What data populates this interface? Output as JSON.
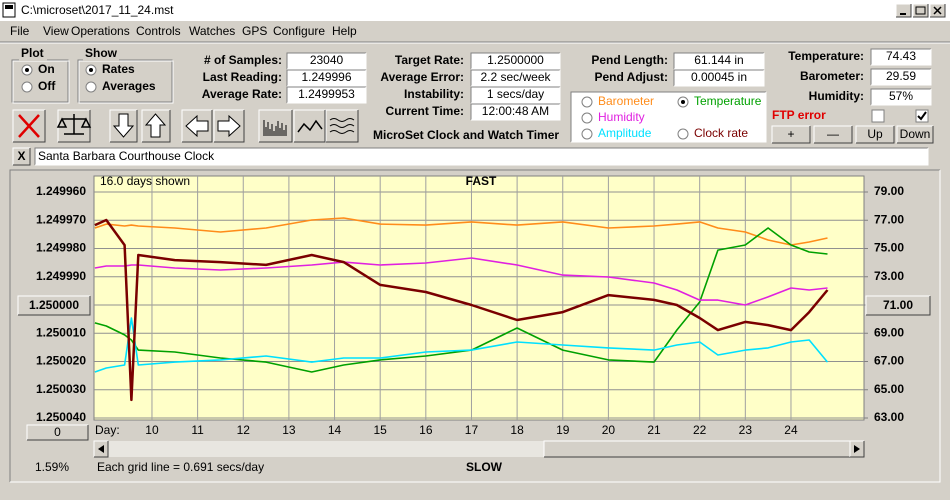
{
  "window": {
    "title": "C:\\microset\\2017_11_24.mst"
  },
  "menu": [
    "File",
    "View",
    "Operations",
    "Controls",
    "Watches",
    "GPS",
    "Configure",
    "Help"
  ],
  "plot_group": {
    "title": "Plot",
    "options": [
      "On",
      "Off"
    ]
  },
  "show_group": {
    "title": "Show",
    "options": [
      "Rates",
      "Averages"
    ]
  },
  "stats": [
    {
      "label": "# of Samples:",
      "value": "23040"
    },
    {
      "label": "Last Reading:",
      "value": "1.249996"
    },
    {
      "label": "Average Rate:",
      "value": "1.2499953"
    }
  ],
  "timing": [
    {
      "label": "Target Rate:",
      "value": "1.2500000"
    },
    {
      "label": "Average Error:",
      "value": "2.2 sec/week"
    },
    {
      "label": "Instability:",
      "value": "1 secs/day"
    },
    {
      "label": "Current Time:",
      "value": "12:00:48 AM"
    }
  ],
  "pendulum": [
    {
      "label": "Pend Length:",
      "value": "61.144 in"
    },
    {
      "label": "Pend Adjust:",
      "value": "0.00045 in"
    }
  ],
  "environment": [
    {
      "label": "Temperature:",
      "value": "74.43"
    },
    {
      "label": "Barometer:",
      "value": "29.59"
    },
    {
      "label": "Humidity:",
      "value": "57%"
    }
  ],
  "app_label": "MicroSet Clock and Watch Timer",
  "ftp_status": "FTP error",
  "small_buttons": [
    "+",
    "—",
    "Up",
    "Down"
  ],
  "close_watch_button": "X",
  "watch_name": "Santa Barbara Courthouse Clock",
  "chart_data": {
    "type": "line",
    "days_shown": "16.0 days shown",
    "top_label": "FAST",
    "bottom_label": "SLOW",
    "x_label": "Day:",
    "grid_note": "Each grid line = 0.691 secs/day",
    "percent": "1.59%",
    "left_button": "1.250000",
    "right_button": "71.00",
    "zero_button": "0",
    "xlim": [
      8.73,
      25.6
    ],
    "xticks": [
      10,
      11,
      12,
      13,
      14,
      15,
      16,
      17,
      18,
      19,
      20,
      21,
      22,
      23,
      24
    ],
    "ylim": [
      1.25004,
      1.24996
    ],
    "yticks": [
      {
        "value": 1.24996,
        "label": "1.249960"
      },
      {
        "value": 1.24997,
        "label": "1.249970"
      },
      {
        "value": 1.24998,
        "label": "1.249980"
      },
      {
        "value": 1.24999,
        "label": "1.249990"
      },
      {
        "value": 1.25,
        "label": "1.250000"
      },
      {
        "value": 1.25001,
        "label": "1.250010"
      },
      {
        "value": 1.25002,
        "label": "1.250020"
      },
      {
        "value": 1.25003,
        "label": "1.250030"
      },
      {
        "value": 1.25004,
        "label": "1.250040"
      }
    ],
    "y2lim": [
      63,
      79
    ],
    "y2ticks": [
      {
        "value": 79,
        "label": "79.00"
      },
      {
        "value": 77,
        "label": "77.00"
      },
      {
        "value": 75,
        "label": "75.00"
      },
      {
        "value": 73,
        "label": "73.00"
      },
      {
        "value": 71,
        "label": "71.00"
      },
      {
        "value": 69,
        "label": "69.00"
      },
      {
        "value": 67,
        "label": "67.00"
      },
      {
        "value": 65,
        "label": "65.00"
      },
      {
        "value": 63,
        "label": "63.00"
      }
    ],
    "grid": true,
    "x": [
      8.75,
      9.0,
      9.4,
      9.55,
      9.7,
      10.5,
      11.5,
      12.5,
      13.5,
      14.2,
      15,
      16,
      17,
      18,
      19,
      20,
      21,
      21.5,
      22,
      22.4,
      23,
      23.5,
      24,
      24.4,
      24.8
    ],
    "series": [
      {
        "name": "Barometer",
        "color": "#ff8c1a",
        "axis": "y2",
        "values": [
          76.45,
          76.73,
          76.59,
          76.66,
          76.59,
          76.45,
          76.17,
          76.45,
          77.02,
          77.16,
          76.73,
          76.66,
          76.88,
          76.66,
          76.88,
          76.45,
          76.59,
          76.73,
          76.88,
          76.45,
          76.17,
          75.6,
          75.25,
          75.46,
          75.74
        ]
      },
      {
        "name": "Temperature",
        "color": "#00a000",
        "axis": "y2",
        "values": [
          69.73,
          69.51,
          68.88,
          68.52,
          67.81,
          67.67,
          67.25,
          66.96,
          66.26,
          66.75,
          67.11,
          67.39,
          67.81,
          69.37,
          67.81,
          67.11,
          66.96,
          69.23,
          71.21,
          74.89,
          75.25,
          76.45,
          75.25,
          74.75,
          74.61
        ]
      },
      {
        "name": "Humidity",
        "color": "#e020e0",
        "axis": "y2",
        "values": [
          73.62,
          73.76,
          73.76,
          73.83,
          73.83,
          73.62,
          73.48,
          73.62,
          73.83,
          74.04,
          73.83,
          73.97,
          74.33,
          73.83,
          73.12,
          72.98,
          72.56,
          72.06,
          71.35,
          71.35,
          71.0,
          71.57,
          72.2,
          72.06,
          72.2
        ]
      },
      {
        "name": "Amplitude",
        "color": "#00e0ff",
        "axis": "y2",
        "values": [
          66.26,
          66.54,
          66.75,
          70.08,
          66.75,
          66.96,
          67.11,
          67.39,
          66.96,
          67.25,
          67.25,
          67.67,
          67.81,
          68.38,
          68.17,
          67.96,
          67.81,
          68.17,
          68.38,
          67.46,
          67.81,
          67.96,
          68.38,
          68.52,
          66.96
        ]
      },
      {
        "name": "Clock rate",
        "color": "#7a0000",
        "values": [
          1.2499717,
          1.2499699,
          1.2499788,
          1.2500336,
          1.2499823,
          1.2499841,
          1.2499848,
          1.2499858,
          1.2499823,
          1.2499848,
          1.2499929,
          1.2499954,
          1.25,
          1.2500053,
          1.2500025,
          1.2499965,
          1.2499982,
          1.25,
          1.2500046,
          1.2500089,
          1.250006,
          1.2500071,
          1.2500089,
          1.2500025,
          1.2499947
        ]
      }
    ]
  }
}
